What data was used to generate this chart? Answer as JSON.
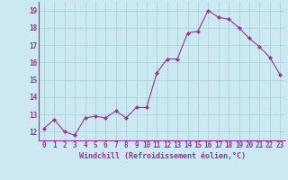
{
  "x": [
    0,
    1,
    2,
    3,
    4,
    5,
    6,
    7,
    8,
    9,
    10,
    11,
    12,
    13,
    14,
    15,
    16,
    17,
    18,
    19,
    20,
    21,
    22,
    23
  ],
  "y": [
    12.2,
    12.7,
    12.0,
    11.8,
    12.8,
    12.9,
    12.8,
    13.2,
    12.8,
    13.4,
    13.4,
    15.4,
    16.2,
    16.2,
    17.7,
    17.8,
    19.0,
    18.6,
    18.5,
    18.0,
    17.4,
    16.9,
    16.3,
    15.3
  ],
  "line_color": "#993399",
  "marker": "D",
  "marker_size": 2,
  "line_width": 0.8,
  "xlabel": "Windchill (Refroidissement éolien,°C)",
  "xlabel_fontsize": 6.0,
  "ylim": [
    11.5,
    19.5
  ],
  "xlim": [
    -0.5,
    23.5
  ],
  "yticks": [
    12,
    13,
    14,
    15,
    16,
    17,
    18,
    19
  ],
  "xticks": [
    0,
    1,
    2,
    3,
    4,
    5,
    6,
    7,
    8,
    9,
    10,
    11,
    12,
    13,
    14,
    15,
    16,
    17,
    18,
    19,
    20,
    21,
    22,
    23
  ],
  "tick_fontsize": 5.5,
  "background_color": "#cce8f0",
  "grid_color": "#aad4e0",
  "axis_label_color": "#993399",
  "spine_color": "#993399"
}
